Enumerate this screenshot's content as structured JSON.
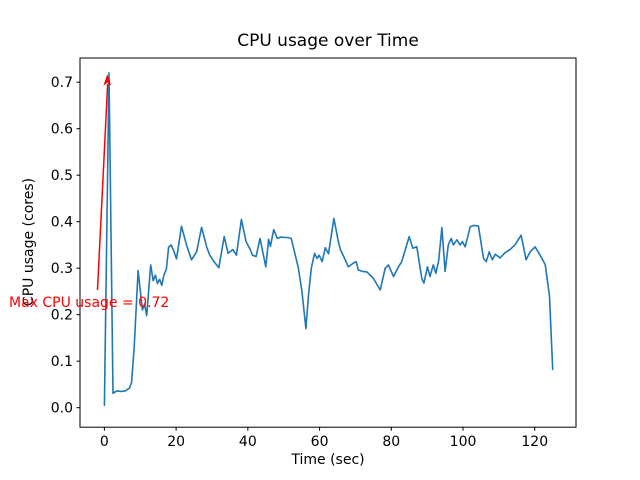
{
  "chart_data": {
    "type": "line",
    "title": "CPU usage over Time",
    "xlabel": "Time (sec)",
    "ylabel": "CPU usage (cores)",
    "xlim": [
      -6.8,
      131.5
    ],
    "ylim": [
      -0.042,
      0.752
    ],
    "xticks": [
      0,
      20,
      40,
      60,
      80,
      100,
      120
    ],
    "xtick_labels": [
      "0",
      "20",
      "40",
      "60",
      "80",
      "100",
      "120"
    ],
    "yticks": [
      0.0,
      0.1,
      0.2,
      0.3,
      0.4,
      0.5,
      0.6,
      0.7
    ],
    "ytick_labels": [
      "0.0",
      "0.1",
      "0.2",
      "0.3",
      "0.4",
      "0.5",
      "0.6",
      "0.7"
    ],
    "grid": false,
    "legend": "none",
    "line_color": "#1f77b4",
    "series": [
      {
        "points": [
          [
            0.0,
            0.005
          ],
          [
            1.3,
            0.72
          ],
          [
            2.4,
            0.031
          ],
          [
            3.5,
            0.036
          ],
          [
            4.6,
            0.035
          ],
          [
            5.8,
            0.036
          ],
          [
            7.0,
            0.042
          ],
          [
            7.6,
            0.055
          ],
          [
            8.3,
            0.13
          ],
          [
            9.4,
            0.295
          ],
          [
            10.6,
            0.21
          ],
          [
            11.2,
            0.223
          ],
          [
            11.8,
            0.198
          ],
          [
            12.9,
            0.307
          ],
          [
            13.6,
            0.273
          ],
          [
            14.2,
            0.285
          ],
          [
            14.8,
            0.267
          ],
          [
            15.4,
            0.276
          ],
          [
            16.0,
            0.263
          ],
          [
            16.6,
            0.285
          ],
          [
            17.3,
            0.298
          ],
          [
            17.9,
            0.345
          ],
          [
            18.6,
            0.35
          ],
          [
            19.3,
            0.338
          ],
          [
            20.1,
            0.32
          ],
          [
            21.5,
            0.39
          ],
          [
            22.9,
            0.35
          ],
          [
            24.3,
            0.318
          ],
          [
            25.7,
            0.335
          ],
          [
            27.1,
            0.388
          ],
          [
            28.5,
            0.346
          ],
          [
            29.4,
            0.328
          ],
          [
            30.6,
            0.314
          ],
          [
            31.9,
            0.301
          ],
          [
            33.4,
            0.368
          ],
          [
            34.5,
            0.332
          ],
          [
            35.8,
            0.34
          ],
          [
            36.8,
            0.328
          ],
          [
            38.2,
            0.405
          ],
          [
            39.5,
            0.357
          ],
          [
            40.5,
            0.343
          ],
          [
            41.3,
            0.328
          ],
          [
            42.3,
            0.325
          ],
          [
            43.4,
            0.364
          ],
          [
            45.0,
            0.303
          ],
          [
            45.8,
            0.362
          ],
          [
            46.3,
            0.347
          ],
          [
            47.2,
            0.383
          ],
          [
            48.2,
            0.364
          ],
          [
            49.2,
            0.367
          ],
          [
            50.2,
            0.366
          ],
          [
            51.2,
            0.366
          ],
          [
            52.1,
            0.364
          ],
          [
            53.0,
            0.335
          ],
          [
            54.1,
            0.3
          ],
          [
            55.1,
            0.249
          ],
          [
            56.2,
            0.17
          ],
          [
            56.9,
            0.242
          ],
          [
            57.7,
            0.3
          ],
          [
            58.6,
            0.332
          ],
          [
            59.3,
            0.321
          ],
          [
            59.9,
            0.328
          ],
          [
            60.7,
            0.314
          ],
          [
            61.6,
            0.344
          ],
          [
            62.5,
            0.331
          ],
          [
            64.0,
            0.407
          ],
          [
            65.1,
            0.362
          ],
          [
            65.8,
            0.34
          ],
          [
            67.1,
            0.319
          ],
          [
            68.0,
            0.303
          ],
          [
            69.4,
            0.311
          ],
          [
            70.2,
            0.314
          ],
          [
            70.8,
            0.296
          ],
          [
            72.0,
            0.293
          ],
          [
            73.2,
            0.292
          ],
          [
            74.1,
            0.285
          ],
          [
            75.0,
            0.278
          ],
          [
            76.9,
            0.253
          ],
          [
            78.3,
            0.3
          ],
          [
            79.2,
            0.307
          ],
          [
            80.6,
            0.282
          ],
          [
            82.0,
            0.303
          ],
          [
            82.9,
            0.314
          ],
          [
            85.0,
            0.368
          ],
          [
            86.0,
            0.343
          ],
          [
            87.1,
            0.346
          ],
          [
            88.5,
            0.278
          ],
          [
            89.1,
            0.268
          ],
          [
            90.1,
            0.303
          ],
          [
            90.8,
            0.282
          ],
          [
            91.7,
            0.307
          ],
          [
            92.4,
            0.289
          ],
          [
            93.2,
            0.315
          ],
          [
            94.1,
            0.387
          ],
          [
            95.0,
            0.293
          ],
          [
            95.9,
            0.35
          ],
          [
            96.7,
            0.364
          ],
          [
            97.3,
            0.35
          ],
          [
            98.3,
            0.361
          ],
          [
            99.2,
            0.35
          ],
          [
            99.8,
            0.357
          ],
          [
            100.6,
            0.346
          ],
          [
            102.0,
            0.389
          ],
          [
            103.0,
            0.392
          ],
          [
            104.3,
            0.391
          ],
          [
            105.7,
            0.321
          ],
          [
            106.5,
            0.314
          ],
          [
            107.3,
            0.335
          ],
          [
            108.2,
            0.318
          ],
          [
            109.0,
            0.33
          ],
          [
            110.3,
            0.322
          ],
          [
            111.7,
            0.333
          ],
          [
            113.1,
            0.34
          ],
          [
            114.5,
            0.35
          ],
          [
            116.2,
            0.371
          ],
          [
            117.6,
            0.318
          ],
          [
            118.7,
            0.335
          ],
          [
            120.1,
            0.346
          ],
          [
            121.5,
            0.328
          ],
          [
            122.9,
            0.308
          ],
          [
            124.1,
            0.24
          ],
          [
            125.0,
            0.082
          ]
        ]
      }
    ],
    "annotation": {
      "text": "Max CPU usage = 0.72",
      "color": "#ff0000",
      "xy": [
        1.3,
        0.72
      ],
      "xytext": [
        -26.6,
        0.225
      ]
    }
  }
}
